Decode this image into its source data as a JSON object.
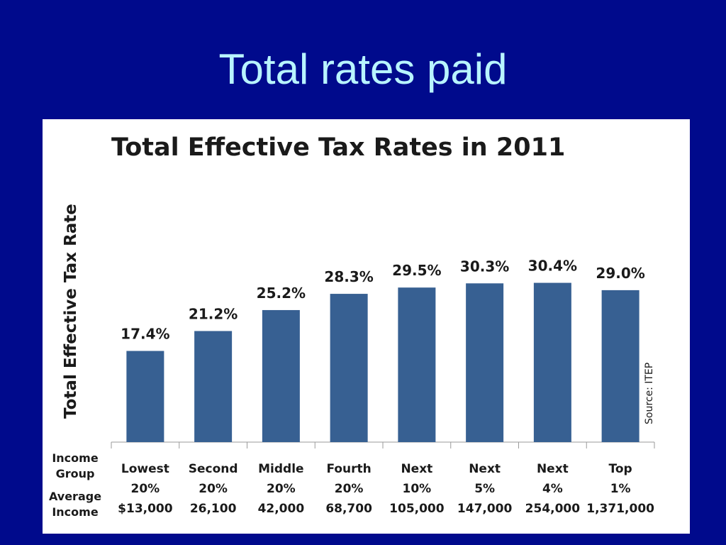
{
  "slide": {
    "title": "Total rates paid"
  },
  "chart_data": {
    "type": "bar",
    "title": "Total Effective Tax Rates in 2011",
    "ylabel": "Total Effective Tax Rate",
    "source": "Source: ITEP",
    "row_labels": {
      "group": [
        "Income",
        "Group"
      ],
      "income": [
        "Average",
        "Income"
      ]
    },
    "categories": [
      [
        "Lowest",
        "20%",
        "$13,000"
      ],
      [
        "Second",
        "20%",
        "26,100"
      ],
      [
        "Middle",
        "20%",
        "42,000"
      ],
      [
        "Fourth",
        "20%",
        "68,700"
      ],
      [
        "Next",
        "10%",
        "105,000"
      ],
      [
        "Next",
        "5%",
        "147,000"
      ],
      [
        "Next",
        "4%",
        "254,000"
      ],
      [
        "Top",
        "1%",
        "1,371,000"
      ]
    ],
    "values": [
      17.4,
      21.2,
      25.2,
      28.3,
      29.5,
      30.3,
      30.4,
      29.0
    ],
    "data_labels": [
      "17.4%",
      "21.2%",
      "25.2%",
      "28.3%",
      "29.5%",
      "30.3%",
      "30.4%",
      "29.0%"
    ],
    "ylim": [
      0,
      47
    ],
    "bar_color": "#376092",
    "grid": false,
    "legend": false
  }
}
